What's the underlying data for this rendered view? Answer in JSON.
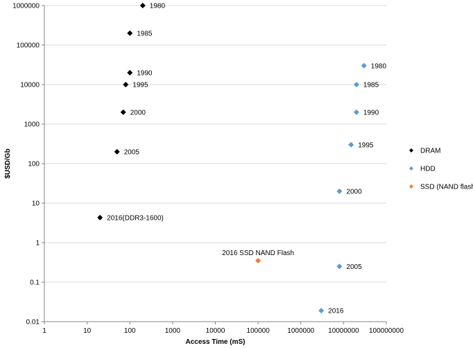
{
  "chart_data": {
    "type": "scatter",
    "xlabel": "Access Time (mS)",
    "ylabel": "$USD/Gb",
    "x_scale": "log",
    "y_scale": "log",
    "xlim": [
      1,
      100000000
    ],
    "ylim": [
      0.01,
      1000000
    ],
    "x_ticks": [
      "1",
      "10",
      "100",
      "1000",
      "10000",
      "100000",
      "1000000",
      "10000000",
      "100000000"
    ],
    "y_ticks": [
      "0.01",
      "0.1",
      "1",
      "10",
      "100",
      "1000",
      "10000",
      "100000",
      "1000000"
    ],
    "grid": "horizontal",
    "legend_position": "right",
    "series": [
      {
        "name": "DRAM",
        "color": "#000000",
        "points": [
          {
            "x": 200,
            "y": 1000000,
            "label": "1980"
          },
          {
            "x": 100,
            "y": 200000,
            "label": "1985"
          },
          {
            "x": 100,
            "y": 20000,
            "label": "1990"
          },
          {
            "x": 80,
            "y": 10000,
            "label": "1995"
          },
          {
            "x": 70,
            "y": 2000,
            "label": "2000"
          },
          {
            "x": 50,
            "y": 200,
            "label": "2005"
          },
          {
            "x": 20,
            "y": 4.3,
            "label": "2016(DDR3-1600)"
          }
        ]
      },
      {
        "name": "HDD",
        "color": "#5b9bd5",
        "points": [
          {
            "x": 30000000,
            "y": 30000,
            "label": "1980"
          },
          {
            "x": 20000000,
            "y": 10000,
            "label": "1985"
          },
          {
            "x": 20000000,
            "y": 2000,
            "label": "1990"
          },
          {
            "x": 15000000,
            "y": 300,
            "label": "1995"
          },
          {
            "x": 8000000,
            "y": 20,
            "label": "2000"
          },
          {
            "x": 8000000,
            "y": 0.25,
            "label": "2005"
          },
          {
            "x": 3000000,
            "y": 0.019,
            "label": "2016"
          }
        ]
      },
      {
        "name": "SSD (NAND flash)",
        "color": "#ed7d31",
        "points": [
          {
            "x": 100000,
            "y": 0.35,
            "label": "2016 SSD NAND Flash",
            "label_position": "above"
          }
        ]
      }
    ]
  }
}
